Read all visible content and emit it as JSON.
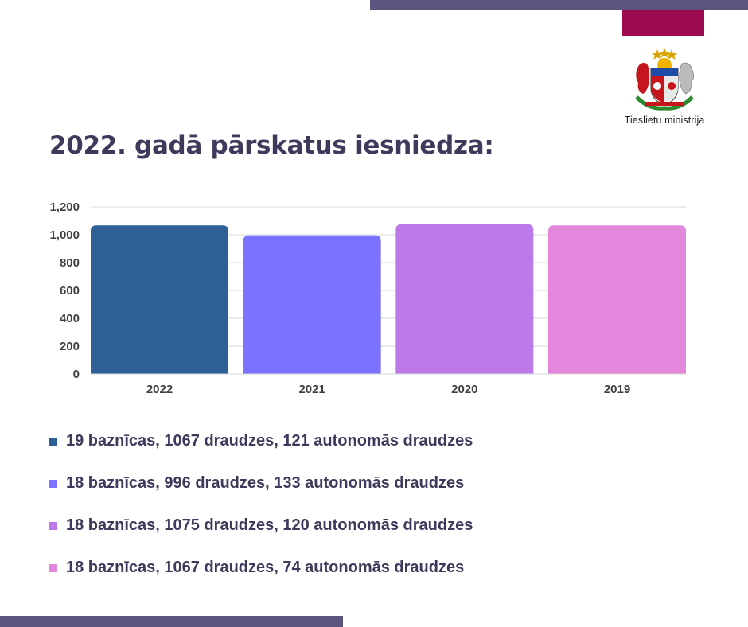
{
  "header": {
    "logo_text": "Tieslietu ministrija",
    "title": "2022. gadā pārskatus iesniedza:"
  },
  "colors": {
    "bar_accent": "#5b5580",
    "flag": "#9e0a4e",
    "title": "#3d3a5c"
  },
  "chart_data": {
    "type": "bar",
    "categories": [
      "2022",
      "2021",
      "2020",
      "2019"
    ],
    "values": [
      1067,
      996,
      1075,
      1067
    ],
    "colors": [
      "#2e5f96",
      "#7b72ff",
      "#bd78ea",
      "#e387dc"
    ],
    "ylim": [
      0,
      1200
    ],
    "yticks": [
      0,
      200,
      400,
      600,
      800,
      1000,
      1200
    ],
    "ytick_labels": [
      "0",
      "200",
      "400",
      "600",
      "800",
      "1,000",
      "1,200"
    ],
    "grid": true,
    "title": "",
    "xlabel": "",
    "ylabel": ""
  },
  "legend": [
    {
      "text": "19 baznīcas, 1067 draudzes, 121 autonomās draudzes",
      "color": "#2e5f96"
    },
    {
      "text": "18 baznīcas, 996 draudzes, 133 autonomās draudzes",
      "color": "#7b72ff"
    },
    {
      "text": "18 baznīcas, 1075 draudzes, 120 autonomās draudzes",
      "color": "#bd78ea"
    },
    {
      "text": "18 baznīcas, 1067 draudzes, 74 autonomās draudzes",
      "color": "#e387dc"
    }
  ]
}
